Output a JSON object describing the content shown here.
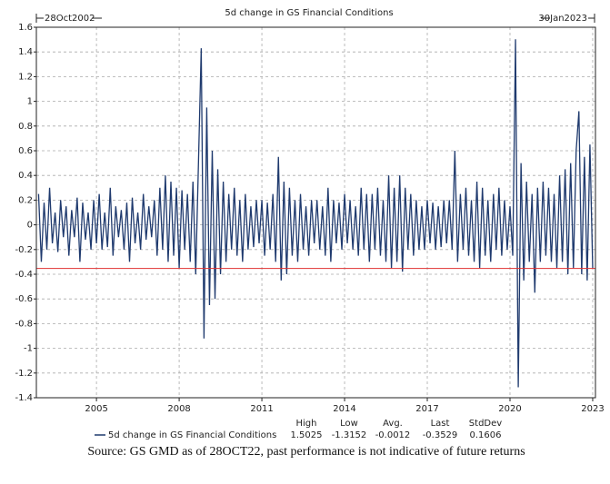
{
  "chart_data": {
    "type": "line",
    "title": "5d change in GS Financial Conditions",
    "start_label": "28Oct2002",
    "end_label": "30Jan2023",
    "xlim": [
      2002.82,
      2023.1
    ],
    "xticks": [
      2005,
      2008,
      2011,
      2014,
      2017,
      2020,
      2023
    ],
    "ylim": [
      -1.4,
      1.6
    ],
    "yticks": [
      -1.4,
      -1.2,
      -1,
      -0.8,
      -0.6,
      -0.4,
      -0.2,
      0,
      0.2,
      0.4,
      0.6,
      0.8,
      1,
      1.2,
      1.4,
      1.6
    ],
    "grid": true,
    "x": [
      2002.9,
      2003.0,
      2003.1,
      2003.2,
      2003.3,
      2003.4,
      2003.5,
      2003.6,
      2003.7,
      2003.8,
      2003.9,
      2004.0,
      2004.1,
      2004.2,
      2004.3,
      2004.4,
      2004.5,
      2004.6,
      2004.7,
      2004.8,
      2004.9,
      2005.0,
      2005.1,
      2005.2,
      2005.3,
      2005.4,
      2005.5,
      2005.6,
      2005.7,
      2005.8,
      2005.9,
      2006.0,
      2006.1,
      2006.2,
      2006.3,
      2006.4,
      2006.5,
      2006.6,
      2006.7,
      2006.8,
      2006.9,
      2007.0,
      2007.1,
      2007.2,
      2007.3,
      2007.4,
      2007.5,
      2007.6,
      2007.7,
      2007.8,
      2007.9,
      2008.0,
      2008.1,
      2008.2,
      2008.3,
      2008.4,
      2008.5,
      2008.6,
      2008.7,
      2008.8,
      2008.9,
      2009.0,
      2009.1,
      2009.2,
      2009.3,
      2009.4,
      2009.5,
      2009.6,
      2009.7,
      2009.8,
      2009.9,
      2010.0,
      2010.1,
      2010.2,
      2010.3,
      2010.4,
      2010.5,
      2010.6,
      2010.7,
      2010.8,
      2010.9,
      2011.0,
      2011.1,
      2011.2,
      2011.3,
      2011.4,
      2011.5,
      2011.6,
      2011.7,
      2011.8,
      2011.9,
      2012.0,
      2012.1,
      2012.2,
      2012.3,
      2012.4,
      2012.5,
      2012.6,
      2012.7,
      2012.8,
      2012.9,
      2013.0,
      2013.1,
      2013.2,
      2013.3,
      2013.4,
      2013.5,
      2013.6,
      2013.7,
      2013.8,
      2013.9,
      2014.0,
      2014.1,
      2014.2,
      2014.3,
      2014.4,
      2014.5,
      2014.6,
      2014.7,
      2014.8,
      2014.9,
      2015.0,
      2015.1,
      2015.2,
      2015.3,
      2015.4,
      2015.5,
      2015.6,
      2015.7,
      2015.8,
      2015.9,
      2016.0,
      2016.1,
      2016.2,
      2016.3,
      2016.4,
      2016.5,
      2016.6,
      2016.7,
      2016.8,
      2016.9,
      2017.0,
      2017.1,
      2017.2,
      2017.3,
      2017.4,
      2017.5,
      2017.6,
      2017.7,
      2017.8,
      2017.9,
      2018.0,
      2018.1,
      2018.2,
      2018.3,
      2018.4,
      2018.5,
      2018.6,
      2018.7,
      2018.8,
      2018.9,
      2019.0,
      2019.1,
      2019.2,
      2019.3,
      2019.4,
      2019.5,
      2019.6,
      2019.7,
      2019.8,
      2019.9,
      2020.0,
      2020.1,
      2020.2,
      2020.3,
      2020.4,
      2020.5,
      2020.6,
      2020.7,
      2020.8,
      2020.9,
      2021.0,
      2021.1,
      2021.2,
      2021.3,
      2021.4,
      2021.5,
      2021.6,
      2021.7,
      2021.8,
      2021.9,
      2022.0,
      2022.1,
      2022.2,
      2022.3,
      2022.4,
      2022.5,
      2022.6,
      2022.7,
      2022.8,
      2022.9,
      2023.0
    ],
    "series": [
      {
        "name": "5d change in GS Financial Conditions",
        "color": "#1f3a6e",
        "values": [
          0.25,
          -0.3,
          0.18,
          -0.2,
          0.3,
          -0.15,
          0.1,
          -0.22,
          0.2,
          -0.1,
          0.15,
          -0.25,
          0.12,
          -0.1,
          0.22,
          -0.3,
          0.18,
          -0.12,
          0.1,
          -0.2,
          0.2,
          -0.15,
          0.25,
          -0.2,
          0.1,
          -0.18,
          0.3,
          -0.25,
          0.15,
          -0.1,
          0.12,
          -0.2,
          0.18,
          -0.3,
          0.22,
          -0.15,
          0.1,
          -0.2,
          0.25,
          -0.12,
          0.15,
          -0.1,
          0.2,
          -0.25,
          0.3,
          -0.2,
          0.4,
          -0.3,
          0.35,
          -0.25,
          0.3,
          -0.35,
          0.28,
          -0.2,
          0.25,
          -0.3,
          0.35,
          -0.4,
          0.5,
          1.43,
          -0.92,
          0.95,
          -0.65,
          0.6,
          -0.6,
          0.45,
          -0.4,
          0.35,
          -0.3,
          0.25,
          -0.2,
          0.3,
          -0.25,
          0.2,
          -0.3,
          0.25,
          -0.2,
          0.15,
          -0.18,
          0.2,
          -0.15,
          0.2,
          -0.25,
          0.18,
          -0.2,
          0.25,
          -0.3,
          0.55,
          -0.45,
          0.35,
          -0.4,
          0.3,
          -0.25,
          0.2,
          -0.3,
          0.25,
          -0.2,
          0.15,
          -0.25,
          0.2,
          -0.15,
          0.2,
          -0.2,
          0.15,
          -0.25,
          0.3,
          -0.3,
          0.2,
          -0.15,
          0.18,
          -0.2,
          0.25,
          -0.15,
          0.2,
          -0.2,
          0.15,
          -0.25,
          0.3,
          -0.2,
          0.25,
          -0.3,
          0.25,
          -0.2,
          0.3,
          -0.25,
          0.2,
          -0.3,
          0.4,
          -0.35,
          0.3,
          -0.3,
          0.4,
          -0.38,
          0.3,
          -0.2,
          0.25,
          -0.25,
          0.2,
          -0.2,
          0.15,
          -0.2,
          0.2,
          -0.15,
          0.18,
          -0.2,
          0.15,
          -0.18,
          0.2,
          -0.15,
          0.2,
          -0.2,
          0.6,
          -0.3,
          0.25,
          -0.2,
          0.3,
          -0.25,
          0.2,
          -0.3,
          0.35,
          -0.35,
          0.3,
          -0.25,
          0.2,
          -0.3,
          0.25,
          -0.2,
          0.3,
          -0.25,
          0.2,
          -0.2,
          0.15,
          -0.25,
          1.5025,
          -1.3152,
          0.5,
          -0.45,
          0.35,
          -0.3,
          0.25,
          -0.55,
          0.3,
          -0.3,
          0.35,
          -0.25,
          0.3,
          -0.3,
          0.25,
          -0.35,
          0.4,
          -0.3,
          0.45,
          -0.4,
          0.5,
          -0.35,
          0.6,
          0.92,
          -0.4,
          0.55,
          -0.45,
          0.65,
          -0.3529
        ]
      }
    ],
    "stats": {
      "labels": [
        "High",
        "Low",
        "Avg.",
        "Last",
        "StdDev"
      ],
      "values": [
        1.5025,
        -1.3152,
        -0.0012,
        -0.3529,
        0.1606
      ]
    },
    "reference_line_color": "#e03030",
    "source": "Source: GS GMD as of 28OCT22, past performance is not indicative of future returns"
  }
}
